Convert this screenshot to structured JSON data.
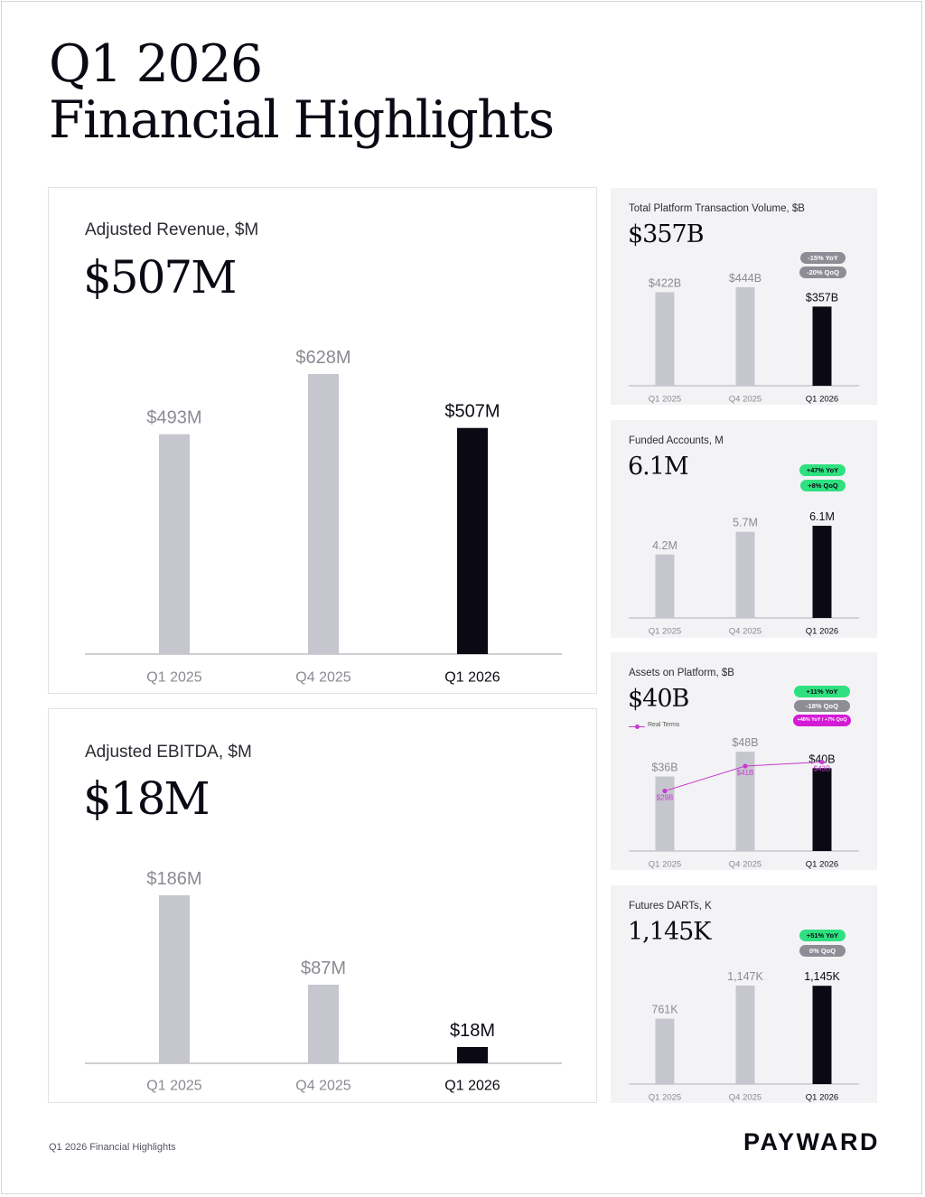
{
  "page": {
    "title_line1": "Q1 2026",
    "title_line2": "Financial Highlights",
    "footer": "Q1 2026 Financial Highlights",
    "logo": "PAYWARD"
  },
  "colors": {
    "prior_bar": "#c6c6ce",
    "current_bar": "#0b0a14",
    "prior_label": "#8a8a93",
    "current_label": "#0b0a14",
    "axis": "#b0b0b6",
    "green_badge": "#2ee07f",
    "gray_badge": "#8d8d95",
    "magenta_badge": "#d51bd8",
    "real_terms_line": "#c63bd0"
  },
  "revenue": {
    "label": "Adjusted Revenue, $M",
    "headline": "$507M"
  },
  "ebitda": {
    "label": "Adjusted EBITDA, $M",
    "headline": "$18M"
  },
  "volume": {
    "label": "Total Platform Transaction Volume, $B",
    "headline": "$357B",
    "badges": [
      "-15% YoY",
      "-20% QoQ"
    ]
  },
  "accounts": {
    "label": "Funded Accounts, M",
    "headline": "6.1M",
    "badges": [
      "+47% YoY",
      "+8% QoQ"
    ]
  },
  "assets": {
    "label": "Assets on Platform, $B",
    "headline": "$40B",
    "badges": [
      "+11% YoY",
      "-18% QoQ",
      "+48% YoY / +7% QoQ"
    ],
    "legend": "Real Terms"
  },
  "darts": {
    "label": "Futures DARTs, K",
    "headline": "1,145K",
    "badges": [
      "+51% YoY",
      "0% QoQ"
    ]
  },
  "chart_data": [
    {
      "id": "revenue",
      "type": "bar",
      "title": "Adjusted Revenue, $M",
      "categories": [
        "Q1 2025",
        "Q4 2025",
        "Q1 2026"
      ],
      "values": [
        493,
        628,
        507
      ],
      "labels": [
        "$493M",
        "$628M",
        "$507M"
      ],
      "ylim": [
        0,
        628
      ],
      "highlight": "Q1 2026"
    },
    {
      "id": "ebitda",
      "type": "bar",
      "title": "Adjusted EBITDA, $M",
      "categories": [
        "Q1 2025",
        "Q4 2025",
        "Q1 2026"
      ],
      "values": [
        186,
        87,
        18
      ],
      "labels": [
        "$186M",
        "$87M",
        "$18M"
      ],
      "ylim": [
        0,
        186
      ],
      "highlight": "Q1 2026"
    },
    {
      "id": "volume",
      "type": "bar",
      "title": "Total Platform Transaction Volume, $B",
      "categories": [
        "Q1 2025",
        "Q4 2025",
        "Q1 2026"
      ],
      "values": [
        422,
        444,
        357
      ],
      "labels": [
        "$422B",
        "$444B",
        "$357B"
      ],
      "ylim": [
        0,
        444
      ],
      "highlight": "Q1 2026"
    },
    {
      "id": "accounts",
      "type": "bar",
      "title": "Funded Accounts, M",
      "categories": [
        "Q1 2025",
        "Q4 2025",
        "Q1 2026"
      ],
      "values": [
        4.2,
        5.7,
        6.1
      ],
      "labels": [
        "4.2M",
        "5.7M",
        "6.1M"
      ],
      "ylim": [
        0,
        6.1
      ],
      "highlight": "Q1 2026"
    },
    {
      "id": "assets",
      "type": "bar",
      "title": "Assets on Platform, $B",
      "categories": [
        "Q1 2025",
        "Q4 2025",
        "Q1 2026"
      ],
      "values": [
        36,
        48,
        40
      ],
      "labels": [
        "$36B",
        "$48B",
        "$40B"
      ],
      "ylim": [
        0,
        48
      ],
      "highlight": "Q1 2026",
      "series": [
        {
          "name": "Real Terms",
          "type": "line",
          "values": [
            29,
            41,
            43
          ],
          "labels": [
            "$29B",
            "$41B",
            "$43B"
          ]
        }
      ]
    },
    {
      "id": "darts",
      "type": "bar",
      "title": "Futures DARTs, K",
      "categories": [
        "Q1 2025",
        "Q4 2025",
        "Q1 2026"
      ],
      "values": [
        761,
        1147,
        1145
      ],
      "labels": [
        "761K",
        "1,147K",
        "1,145K"
      ],
      "ylim": [
        0,
        1147
      ],
      "highlight": "Q1 2026"
    }
  ]
}
